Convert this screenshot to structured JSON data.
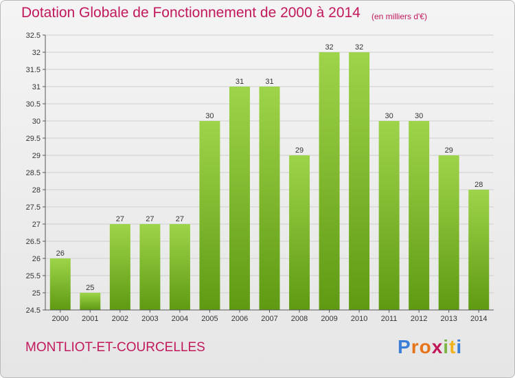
{
  "header": {
    "title": "Dotation Globale de Fonctionnement de 2000 à 2014",
    "unit": "(en milliers d'€)"
  },
  "footer": {
    "place": "MONTLIOT-ET-COURCELLES",
    "logo_letters": [
      "P",
      "r",
      "o",
      "x",
      "i",
      "t",
      "i"
    ],
    "logo_colors": [
      "#3a7dd8",
      "#e8741a",
      "#e8741a",
      "#c2185b",
      "#7cb342",
      "#f2b21c",
      "#3a7dd8"
    ]
  },
  "colors": {
    "title": "#c2185b",
    "bar_top": "#9ed44a",
    "bar_bottom": "#5f9a12",
    "grid": "#cfcfcf"
  },
  "chart_data": {
    "type": "bar",
    "categories": [
      "2000",
      "2001",
      "2002",
      "2003",
      "2004",
      "2005",
      "2006",
      "2007",
      "2008",
      "2009",
      "2010",
      "2011",
      "2012",
      "2013",
      "2014"
    ],
    "values": [
      26,
      25,
      27,
      27,
      27,
      30,
      31,
      31,
      29,
      32,
      32,
      30,
      30,
      29,
      28
    ],
    "value_labels": [
      "26",
      "25",
      "27",
      "27",
      "27",
      "30",
      "31",
      "31",
      "29",
      "32",
      "32",
      "30",
      "30",
      "29",
      "28"
    ],
    "ylim": [
      24.5,
      32.5
    ],
    "yticks": [
      24.5,
      25,
      25.5,
      26,
      26.5,
      27,
      27.5,
      28,
      28.5,
      29,
      29.5,
      30,
      30.5,
      31,
      31.5,
      32,
      32.5
    ],
    "ytick_labels": [
      "24.5",
      "25",
      "25.5",
      "26",
      "26.5",
      "27",
      "27.5",
      "28",
      "28.5",
      "29",
      "29.5",
      "30",
      "30.5",
      "31",
      "31.5",
      "32",
      "32.5"
    ],
    "grid": true,
    "legend": false
  }
}
